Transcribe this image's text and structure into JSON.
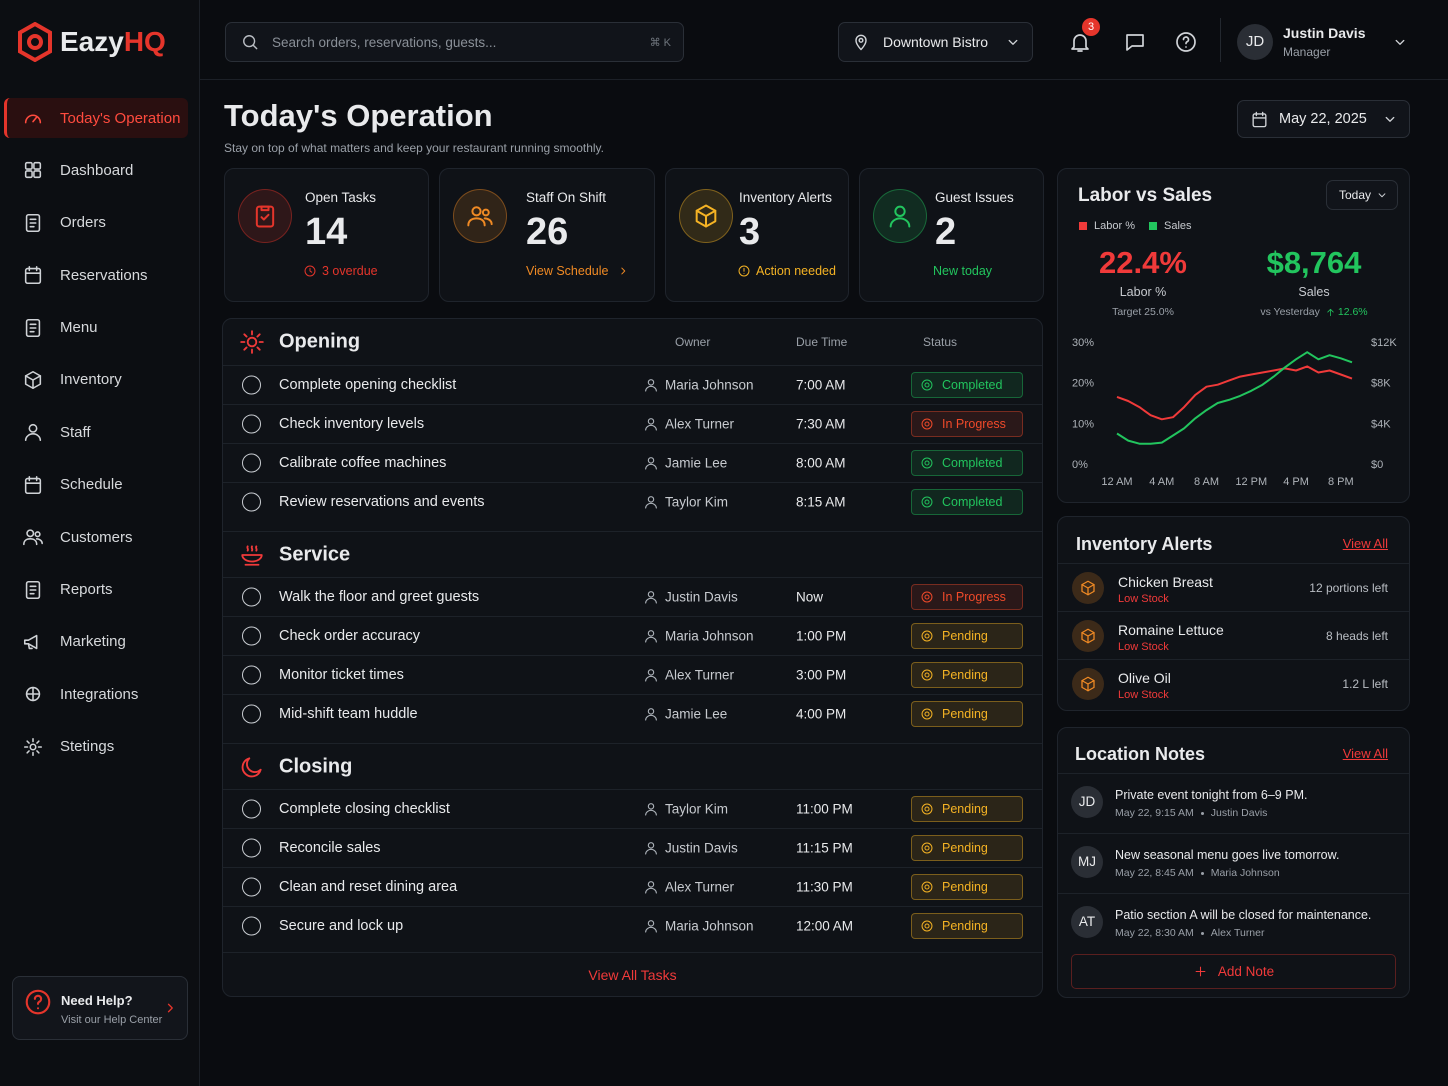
{
  "brand": {
    "name": "Eazy",
    "accent": "HQ"
  },
  "nav": [
    "Today's Operation",
    "Dashboard",
    "Orders",
    "Reservations",
    "Menu",
    "Inventory",
    "Staff",
    "Schedule",
    "Customers",
    "Reports",
    "Marketing",
    "Integrations",
    "Stetings"
  ],
  "help": {
    "title": "Need Help?",
    "subtitle": "Visit our Help Center"
  },
  "topbar": {
    "search": "Search orders, reservations, guests...",
    "shortcut": "⌘ K",
    "location": "Downtown Bistro",
    "notifications": 3,
    "user": {
      "initials": "JD",
      "name": "Justin Davis",
      "role": "Manager"
    }
  },
  "header": {
    "title": "Today's Operation",
    "subtitle": "Stay on top of what matters and keep your restaurant running smoothly.",
    "date": "May 22, 2025"
  },
  "stats": [
    {
      "label": "Open Tasks",
      "value": 14,
      "note": "3 overdue",
      "color": "#e5352b"
    },
    {
      "label": "Staff On Shift",
      "value": 26,
      "note": "View Schedule",
      "color": "#f08a24"
    },
    {
      "label": "Inventory Alerts",
      "value": 3,
      "note": "Action needed",
      "color": "#f5b324"
    },
    {
      "label": "Guest Issues",
      "value": 2,
      "note": "New today",
      "color": "#22c55e"
    }
  ],
  "tasks": {
    "columns": [
      "Owner",
      "Due Time",
      "Status"
    ],
    "sections": [
      {
        "title": "Opening",
        "rows": [
          {
            "task": "Complete opening checklist",
            "owner": "Maria Johnson",
            "time": "7:00 AM",
            "status": "Completed",
            "status_color": "#22c55e"
          },
          {
            "task": "Check inventory levels",
            "owner": "Alex Turner",
            "time": "7:30 AM",
            "status": "In Progress",
            "status_color": "#f04a2a"
          },
          {
            "task": "Calibrate coffee machines",
            "owner": "Jamie Lee",
            "time": "8:00 AM",
            "status": "Completed",
            "status_color": "#22c55e"
          },
          {
            "task": "Review reservations and events",
            "owner": "Taylor Kim",
            "time": "8:15 AM",
            "status": "Completed",
            "status_color": "#22c55e"
          }
        ]
      },
      {
        "title": "Service",
        "rows": [
          {
            "task": "Walk the floor and greet guests",
            "owner": "Justin Davis",
            "time": "Now",
            "status": "In Progress",
            "status_color": "#f04a2a"
          },
          {
            "task": "Check order accuracy",
            "owner": "Maria Johnson",
            "time": "1:00 PM",
            "status": "Pending",
            "status_color": "#f5b324"
          },
          {
            "task": "Monitor ticket times",
            "owner": "Alex Turner",
            "time": "3:00 PM",
            "status": "Pending",
            "status_color": "#f5b324"
          },
          {
            "task": "Mid-shift team huddle",
            "owner": "Jamie Lee",
            "time": "4:00 PM",
            "status": "Pending",
            "status_color": "#f5b324"
          }
        ]
      },
      {
        "title": "Closing",
        "rows": [
          {
            "task": "Complete closing checklist",
            "owner": "Taylor Kim",
            "time": "11:00 PM",
            "status": "Pending",
            "status_color": "#f5b324"
          },
          {
            "task": "Reconcile sales",
            "owner": "Justin Davis",
            "time": "11:15 PM",
            "status": "Pending",
            "status_color": "#f5b324"
          },
          {
            "task": "Clean and reset dining area",
            "owner": "Alex Turner",
            "time": "11:30 PM",
            "status": "Pending",
            "status_color": "#f5b324"
          },
          {
            "task": "Secure and lock up",
            "owner": "Maria Johnson",
            "time": "12:00 AM",
            "status": "Pending",
            "status_color": "#f5b324"
          }
        ]
      }
    ],
    "footer": "View All Tasks"
  },
  "chart_data": {
    "type": "line",
    "title": "Labor vs Sales",
    "period": "Today",
    "kpis": [
      {
        "value": "22.4%",
        "label": "Labor %",
        "sub": "Target 25.0%",
        "color": "#f03a3a"
      },
      {
        "value": "$8,764",
        "label": "Sales",
        "sub": "vs Yesterday",
        "change": "12.6%",
        "color": "#22c55e"
      }
    ],
    "x": [
      0,
      1,
      2,
      3,
      4,
      5,
      6,
      7,
      8,
      9,
      10,
      11,
      12,
      13,
      14,
      15,
      16,
      17,
      18,
      19,
      20,
      21
    ],
    "xlim": [
      0,
      21
    ],
    "xticks": [
      {
        "value": 0,
        "label": "12 AM"
      },
      {
        "value": 4,
        "label": "4 AM"
      },
      {
        "value": 8,
        "label": "8 AM"
      },
      {
        "value": 12,
        "label": "12 PM"
      },
      {
        "value": 16,
        "label": "4 PM"
      },
      {
        "value": 20,
        "label": "8 PM"
      }
    ],
    "ylim": [
      0,
      30
    ],
    "yticks": [
      {
        "value": 0,
        "label": "0%"
      },
      {
        "value": 10,
        "label": "10%"
      },
      {
        "value": 20,
        "label": "20%"
      },
      {
        "value": 30,
        "label": "30%"
      }
    ],
    "y2lim": [
      0,
      12000
    ],
    "y2ticks": [
      {
        "value": 0,
        "label": "$0"
      },
      {
        "value": 4000,
        "label": "$4K"
      },
      {
        "value": 8000,
        "label": "$8K"
      },
      {
        "value": 12000,
        "label": "$12K"
      }
    ],
    "grid": false,
    "series": [
      {
        "name": "Labor %",
        "color": "#f03a3a",
        "values": [
          16.5,
          15.5,
          14,
          12,
          11,
          11.5,
          14,
          17,
          19,
          19.5,
          20.5,
          21.5,
          22,
          22.5,
          23,
          23.5,
          23,
          24,
          22.5,
          23,
          22,
          21
        ]
      },
      {
        "name": "Sales",
        "color": "#22c55e",
        "axis": "y2",
        "values": [
          3000,
          2300,
          2000,
          2000,
          2100,
          2800,
          3500,
          4500,
          5300,
          6000,
          6300,
          6700,
          7200,
          7800,
          8600,
          9500,
          10300,
          11000,
          10300,
          10700,
          10400,
          10000
        ]
      }
    ]
  },
  "inventory": {
    "title": "Inventory Alerts",
    "action": "View All",
    "items": [
      {
        "name": "Chicken Breast",
        "status": "Low Stock",
        "qty": "12 portions left"
      },
      {
        "name": "Romaine Lettuce",
        "status": "Low Stock",
        "qty": "8 heads left"
      },
      {
        "name": "Olive Oil",
        "status": "Low Stock",
        "qty": "1.2 L left"
      }
    ]
  },
  "notes": {
    "title": "Location Notes",
    "action": "View All",
    "items": [
      {
        "initials": "JD",
        "text": "Private event tonight from 6–9 PM.",
        "time": "May 22, 9:15 AM",
        "author": "Justin Davis"
      },
      {
        "initials": "MJ",
        "text": "New seasonal menu goes live tomorrow.",
        "time": "May 22, 8:45 AM",
        "author": "Maria Johnson"
      },
      {
        "initials": "AT",
        "text": "Patio section A will be closed for maintenance.",
        "time": "May 22, 8:30 AM",
        "author": "Alex Turner"
      }
    ],
    "add": "Add Note"
  }
}
